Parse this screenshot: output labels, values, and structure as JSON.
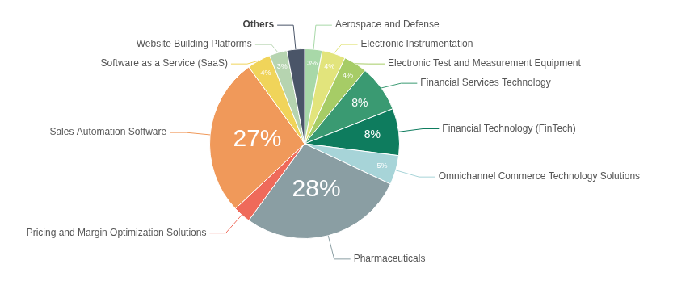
{
  "chart_data": {
    "type": "pie",
    "categories": [
      "Aerospace and Defense",
      "Electronic Instrumentation",
      "Electronic Test and Measurement Equipment",
      "Financial Services Technology",
      "Financial Technology (FinTech)",
      "Omnichannel Commerce Technology Solutions",
      "Pharmaceuticals",
      "Pricing and Margin Optimization Solutions",
      "Sales Automation Software",
      "Software as a Service (SaaS)",
      "Website Building Platforms",
      "Others"
    ],
    "values": [
      3,
      4,
      4,
      8,
      8,
      5,
      28,
      3,
      27,
      4,
      3,
      3
    ],
    "value_labels": [
      "3%",
      "4%",
      "4%",
      "8%",
      "8%",
      "5%",
      "28%",
      null,
      "27%",
      "4%",
      "3%",
      null
    ],
    "colors": [
      "#a8d8a8",
      "#e2e47c",
      "#a6cc66",
      "#3a9a72",
      "#0e7c5e",
      "#a7d4d8",
      "#8a9ea3",
      "#ef6a5a",
      "#f0995a",
      "#f0d45a",
      "#b6d4b0",
      "#4a5568"
    ],
    "data_labels": true
  }
}
